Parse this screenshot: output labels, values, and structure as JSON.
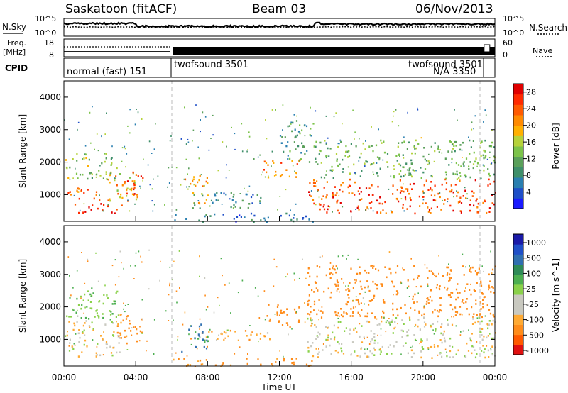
{
  "header": {
    "station": "Saskatoon (fitACF)",
    "beam": "Beam 03",
    "date": "06/Nov/2013"
  },
  "noise_panel": {
    "left_label": "N.Sky",
    "ticks_left": [
      "10^5",
      "10^0"
    ],
    "right_label": "N.Search",
    "ticks_right": [
      "10^5",
      "10^0"
    ]
  },
  "freq_panel": {
    "left_label_1": "Freq.",
    "left_label_2": "[MHz]",
    "ticks_left": [
      "18",
      "8"
    ],
    "right_label": "Nave",
    "ticks_right": [
      "60",
      "0"
    ]
  },
  "cpid_panel": {
    "label": "CPID",
    "modes": [
      {
        "text": "normal (fast) 151",
        "start_hour": 0
      },
      {
        "text": "twofsound 3501",
        "start_hour": 6.0
      },
      {
        "text": "twofsound 3501",
        "start_hour": 23.0
      },
      {
        "text": "N/A 3350",
        "start_hour": 23.3
      }
    ]
  },
  "time_axis": {
    "ticks": [
      "00:00",
      "04:00",
      "08:00",
      "12:00",
      "16:00",
      "20:00",
      "00:00"
    ],
    "label": "Time UT"
  },
  "colors": {
    "power_scale": [
      "#1a1aff",
      "#1f4fc8",
      "#2a7fb0",
      "#3f8f6a",
      "#5aa05a",
      "#7cc34a",
      "#b6d23a",
      "#ffb000",
      "#ff8a00",
      "#ff5a00",
      "#ff2a00",
      "#e00000"
    ],
    "velocity_scale": [
      "#e01010",
      "#ff5a00",
      "#ff8c1a",
      "#ffaa33",
      "#c9c9c0",
      "#c9c9c0",
      "#8ad14a",
      "#4caf50",
      "#2e8b57",
      "#2f6fb0",
      "#1f4fc8",
      "#1a1aa8"
    ]
  },
  "chart_data": [
    {
      "type": "heatmap",
      "title": "Power",
      "ylabel": "Slant Range [km]",
      "xlabel": "",
      "ylim": [
        180,
        4500
      ],
      "xlim_hours": [
        0,
        24
      ],
      "yticks": [
        1000,
        2000,
        3000,
        4000
      ],
      "colorbar": {
        "label": "Power [dB]",
        "ticks": [
          "4",
          "8",
          "12",
          "16",
          "20",
          "24",
          "28"
        ],
        "range": [
          0,
          30
        ]
      },
      "regions": [
        {
          "t": [
            0.0,
            2.2
          ],
          "r": [
            850,
            1250
          ],
          "v": 23
        },
        {
          "t": [
            0.5,
            3.3
          ],
          "r": [
            430,
            750
          ],
          "v": 27
        },
        {
          "t": [
            0.0,
            3.0
          ],
          "r": [
            1500,
            2300
          ],
          "v": 14
        },
        {
          "t": [
            2.2,
            4.2
          ],
          "r": [
            800,
            1700
          ],
          "v": 19
        },
        {
          "t": [
            3.3,
            4.4
          ],
          "r": [
            1000,
            1800
          ],
          "v": 25
        },
        {
          "t": [
            6.5,
            8.0
          ],
          "r": [
            750,
            1600
          ],
          "v": 21
        },
        {
          "t": [
            7.0,
            11.0
          ],
          "r": [
            600,
            1100
          ],
          "v": 8
        },
        {
          "t": [
            11.0,
            13.2
          ],
          "r": [
            1500,
            2100
          ],
          "v": 22
        },
        {
          "t": [
            12.0,
            14.0
          ],
          "r": [
            2000,
            3300
          ],
          "v": 10
        },
        {
          "t": [
            13.5,
            24.0
          ],
          "r": [
            450,
            1500
          ],
          "v": 25
        },
        {
          "t": [
            14.0,
            24.0
          ],
          "r": [
            1500,
            2700
          ],
          "v": 12
        },
        {
          "t": [
            6.0,
            14.0
          ],
          "r": [
            190,
            450
          ],
          "v": 6
        }
      ]
    },
    {
      "type": "heatmap",
      "title": "Velocity",
      "ylabel": "Slant Range [km]",
      "xlabel": "Time UT",
      "ylim": [
        180,
        4500
      ],
      "xlim_hours": [
        0,
        24
      ],
      "yticks": [
        1000,
        2000,
        3000,
        4000
      ],
      "colorbar": {
        "label": "Velocity [m s^-1]",
        "ticks": [
          "1000",
          "500",
          "100",
          "25",
          "-25",
          "-100",
          "-500",
          "-1000"
        ],
        "range": [
          -1200,
          1200
        ]
      },
      "regions": [
        {
          "t": [
            0.0,
            3.2
          ],
          "r": [
            500,
            1600
          ],
          "v": 0
        },
        {
          "t": [
            0.0,
            3.0
          ],
          "r": [
            1600,
            2600
          ],
          "v": 80
        },
        {
          "t": [
            2.8,
            4.4
          ],
          "r": [
            900,
            1800
          ],
          "v": -150
        },
        {
          "t": [
            6.5,
            8.0
          ],
          "r": [
            600,
            1500
          ],
          "v": 500
        },
        {
          "t": [
            7.0,
            11.5
          ],
          "r": [
            1000,
            1300
          ],
          "v": -80
        },
        {
          "t": [
            11.2,
            13.2
          ],
          "r": [
            1400,
            2100
          ],
          "v": -200
        },
        {
          "t": [
            13.5,
            24.0
          ],
          "r": [
            450,
            1700
          ],
          "v": 0
        },
        {
          "t": [
            13.5,
            24.0
          ],
          "r": [
            1700,
            3300
          ],
          "v": -250
        },
        {
          "t": [
            6.0,
            14.0
          ],
          "r": [
            190,
            450
          ],
          "v": -120
        }
      ]
    }
  ]
}
